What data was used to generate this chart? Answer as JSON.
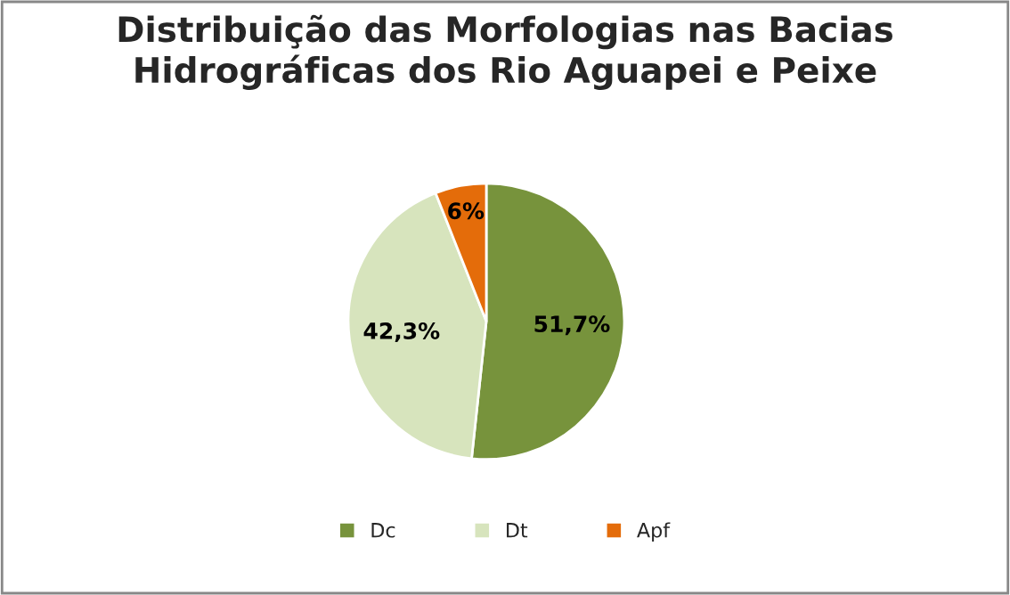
{
  "chart_data": {
    "type": "pie",
    "title": "Distribuição das Morfologias nas Bacias\nHidrográficas dos Rio Aguapei e Peixe",
    "categories": [
      "Dc",
      "Dt",
      "Apf"
    ],
    "values": [
      51.7,
      42.3,
      6
    ],
    "colors": [
      "#77933c",
      "#d7e4bd",
      "#e46c0a"
    ],
    "value_labels": [
      "51,7%",
      "42,3%",
      "6%"
    ],
    "legend": "bottom"
  }
}
